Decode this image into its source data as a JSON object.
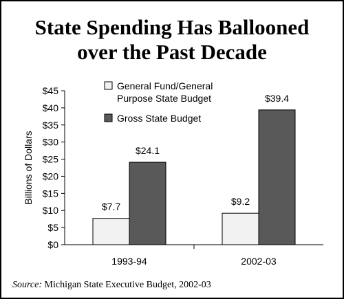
{
  "chart_data": {
    "type": "bar",
    "title_lines": [
      "State Spending Has Ballooned",
      "over the Past Decade"
    ],
    "categories": [
      "1993-94",
      "2002-03"
    ],
    "series": [
      {
        "name_lines": [
          "General Fund/General",
          "Purpose State Budget"
        ],
        "values": [
          7.7,
          9.2
        ],
        "labels": [
          "$7.7",
          "$9.2"
        ],
        "color": "#f2f2f2"
      },
      {
        "name_lines": [
          "Gross State Budget"
        ],
        "values": [
          24.1,
          39.4
        ],
        "labels": [
          "$24.1",
          "$39.4"
        ],
        "color": "#595959"
      }
    ],
    "ylabel": "Billions of Dollars",
    "ylim": [
      0,
      45
    ],
    "yticks": [
      0,
      5,
      10,
      15,
      20,
      25,
      30,
      35,
      40,
      45
    ],
    "ytick_labels": [
      "$0",
      "$5",
      "$10",
      "$15",
      "$20",
      "$25",
      "$30",
      "$35",
      "$40",
      "$45"
    ],
    "grid": false,
    "legend_position": "top-center"
  },
  "source": {
    "prefix": "Source:",
    "text": " Michigan State Executive Budget, 2002-03"
  }
}
